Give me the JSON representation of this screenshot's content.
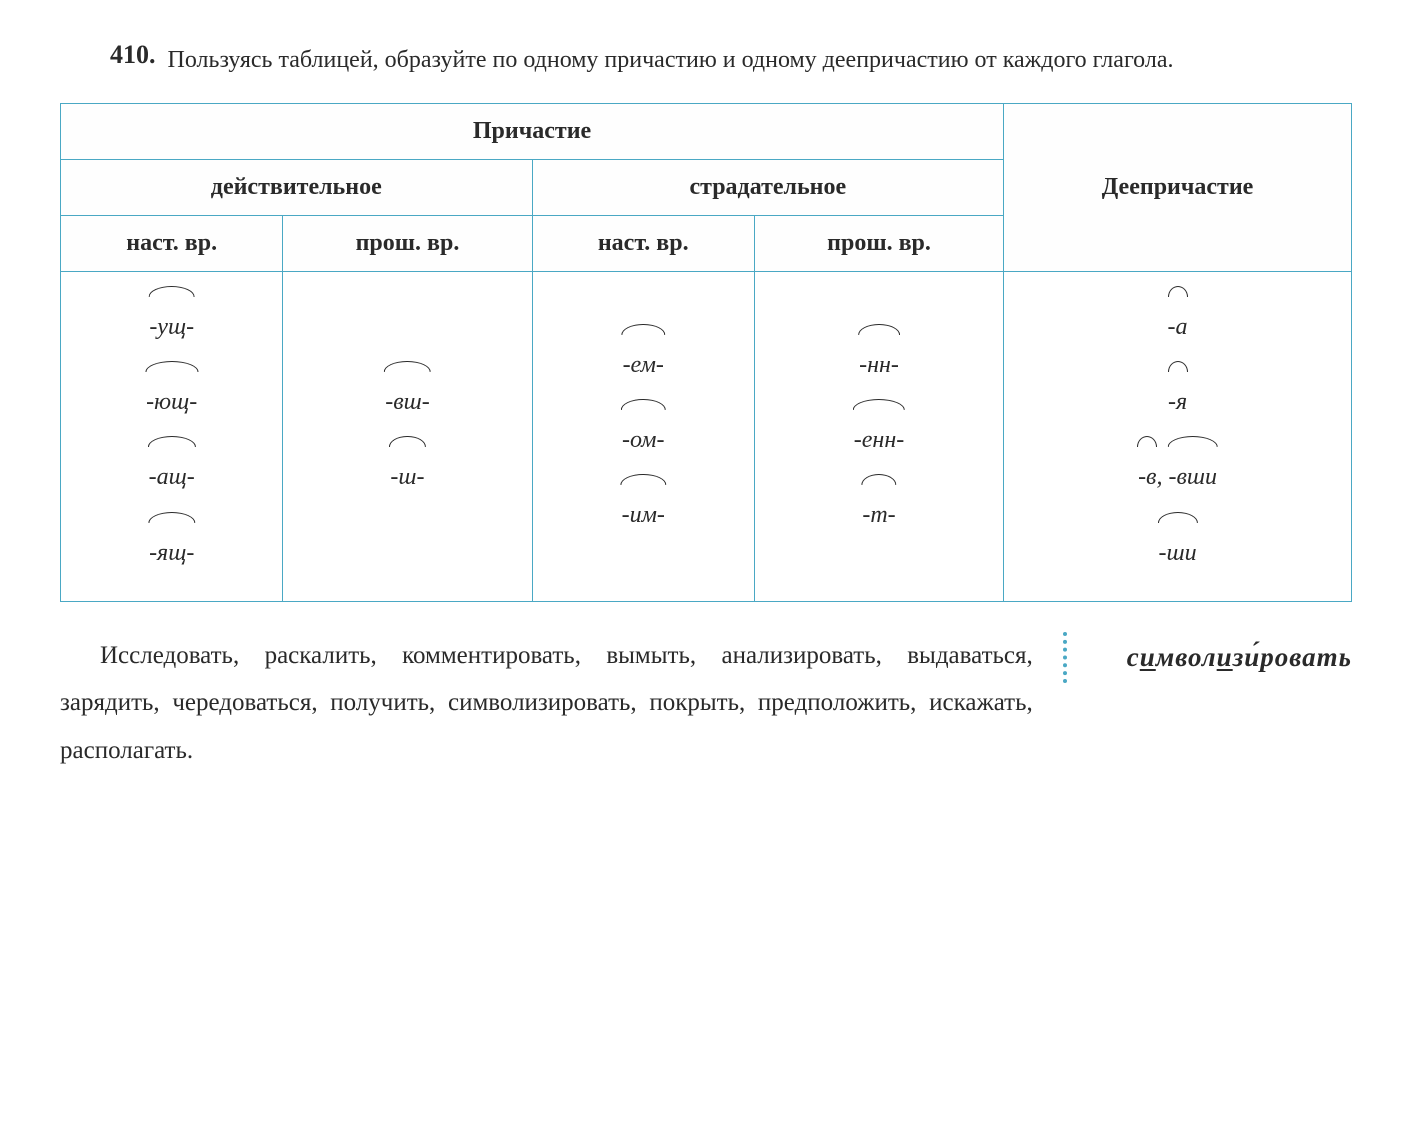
{
  "exercise": {
    "number": "410.",
    "instruction": "Пользуясь таблицей, образуйте по одному причастию и одному деепричастию от каждого глагола."
  },
  "table": {
    "headers": {
      "participle": "Причастие",
      "active": "действительное",
      "passive": "страдательное",
      "gerund": "Деепричастие",
      "present": "наст. вр.",
      "past": "прош. вр."
    },
    "suffixes": {
      "active_present": [
        "-ущ-",
        "-ющ-",
        "-ащ-",
        "-ящ-"
      ],
      "active_past": [
        "-вш-",
        "-ш-"
      ],
      "passive_present": [
        "-ем-",
        "-ом-",
        "-им-"
      ],
      "passive_past": [
        "-нн-",
        "-енн-",
        "-т-"
      ],
      "gerund": [
        "-а",
        "-я",
        "-в, -вши",
        "-ши"
      ]
    }
  },
  "vocab": {
    "word_parts": [
      "с",
      "и",
      "мвол",
      "и",
      "з",
      "и́",
      "ровать"
    ]
  },
  "words": {
    "text": "Исследовать, раскалить, комментировать, вымыть, анализировать, выдаваться, зарядить, чередоваться, получить, символизировать, покрыть, предположить, искажать, располагать."
  },
  "style": {
    "border_color": "#4aa8c4",
    "text_color": "#2a2a2a",
    "background": "#ffffff"
  }
}
